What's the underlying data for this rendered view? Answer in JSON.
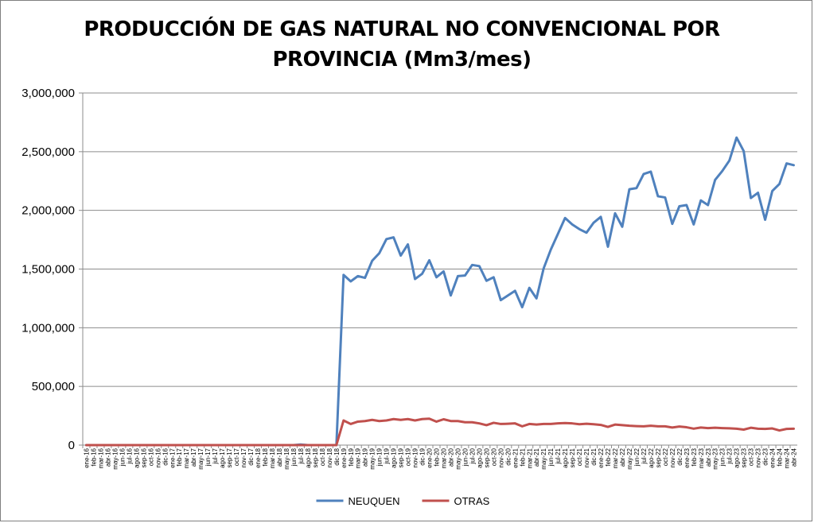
{
  "chart_data": {
    "type": "line",
    "title": "PRODUCCIÓN DE GAS NATURAL NO CONVENCIONAL POR PROVINCIA (Mm3/mes)",
    "xlabel": "",
    "ylabel": "",
    "ylim": [
      0,
      3000000
    ],
    "yticks": [
      0,
      500000,
      1000000,
      1500000,
      2000000,
      2500000,
      3000000
    ],
    "ytick_labels": [
      "0",
      "500,000",
      "1,000,000",
      "1,500,000",
      "2,000,000",
      "2,500,000",
      "3,000,000"
    ],
    "grid": "horizontal",
    "legend_position": "bottom",
    "categories": [
      "ene-16",
      "feb-16",
      "mar-16",
      "abr-16",
      "may-16",
      "jun-16",
      "jul-16",
      "ago-16",
      "sep-16",
      "oct-16",
      "nov-16",
      "dic-16",
      "ene-17",
      "feb-17",
      "mar-17",
      "abr-17",
      "may-17",
      "jun-17",
      "jul-17",
      "ago-17",
      "sep-17",
      "oct-17",
      "nov-17",
      "dic-17",
      "ene-18",
      "feb-18",
      "mar-18",
      "abr-18",
      "may-18",
      "jun-18",
      "jul-18",
      "ago-18",
      "sep-18",
      "oct-18",
      "nov-18",
      "dic-18",
      "ene-19",
      "feb-19",
      "mar-19",
      "abr-19",
      "may-19",
      "jun-19",
      "jul-19",
      "ago-19",
      "sep-19",
      "oct-19",
      "nov-19",
      "dic-19",
      "ene-20",
      "feb-20",
      "mar-20",
      "abr-20",
      "may-20",
      "jun-20",
      "jul-20",
      "ago-20",
      "sep-20",
      "oct-20",
      "nov-20",
      "dic-20",
      "ene-21",
      "feb-21",
      "mar-21",
      "abr-21",
      "may-21",
      "jun-21",
      "jul-21",
      "ago-21",
      "sep-21",
      "oct-21",
      "nov-21",
      "dic-21",
      "ene-22",
      "feb-22",
      "mar-22",
      "abr-22",
      "may-22",
      "jun-22",
      "jul-22",
      "ago-22",
      "sep-22",
      "oct-22",
      "nov-22",
      "dic-22",
      "ene-23",
      "feb-23",
      "mar-23",
      "abr-23",
      "may-23",
      "jun-23",
      "jul-23",
      "ago-23",
      "sep-23",
      "oct-23",
      "nov-23",
      "dic-23",
      "ene-24",
      "feb-24",
      "mar-24",
      "abr-24"
    ],
    "series": [
      {
        "name": "NEUQUEN",
        "color": "#4f81bd",
        "values": [
          0,
          0,
          0,
          0,
          0,
          0,
          0,
          0,
          0,
          0,
          0,
          0,
          0,
          0,
          0,
          0,
          0,
          0,
          0,
          0,
          0,
          0,
          0,
          0,
          0,
          0,
          0,
          0,
          0,
          0,
          5000,
          0,
          0,
          0,
          0,
          0,
          1450000,
          1395000,
          1440000,
          1425000,
          1570000,
          1635000,
          1755000,
          1770000,
          1615000,
          1710000,
          1415000,
          1460000,
          1575000,
          1430000,
          1480000,
          1275000,
          1440000,
          1445000,
          1535000,
          1525000,
          1400000,
          1430000,
          1235000,
          1275000,
          1315000,
          1175000,
          1340000,
          1250000,
          1505000,
          1665000,
          1800000,
          1935000,
          1880000,
          1840000,
          1810000,
          1895000,
          1945000,
          1690000,
          1975000,
          1860000,
          2180000,
          2190000,
          2310000,
          2330000,
          2120000,
          2110000,
          1885000,
          2035000,
          2045000,
          1880000,
          2085000,
          2045000,
          2260000,
          2335000,
          2425000,
          2620000,
          2505000,
          2105000,
          2150000,
          1920000,
          2165000,
          2225000,
          2400000,
          2385000
        ]
      },
      {
        "name": "OTRAS",
        "color": "#c0504d",
        "values": [
          0,
          0,
          0,
          0,
          0,
          0,
          0,
          0,
          0,
          0,
          0,
          0,
          0,
          0,
          0,
          0,
          0,
          0,
          0,
          0,
          0,
          0,
          0,
          0,
          0,
          0,
          0,
          0,
          0,
          0,
          0,
          0,
          0,
          0,
          0,
          0,
          210000,
          180000,
          200000,
          205000,
          215000,
          205000,
          210000,
          222000,
          215000,
          222000,
          210000,
          222000,
          225000,
          200000,
          220000,
          205000,
          205000,
          195000,
          195000,
          185000,
          170000,
          190000,
          180000,
          182000,
          185000,
          160000,
          180000,
          175000,
          180000,
          180000,
          185000,
          188000,
          185000,
          178000,
          182000,
          178000,
          172000,
          155000,
          175000,
          170000,
          165000,
          162000,
          160000,
          165000,
          160000,
          160000,
          150000,
          158000,
          152000,
          140000,
          150000,
          145000,
          148000,
          145000,
          143000,
          140000,
          132000,
          148000,
          140000,
          138000,
          142000,
          125000,
          138000,
          140000
        ]
      }
    ]
  }
}
